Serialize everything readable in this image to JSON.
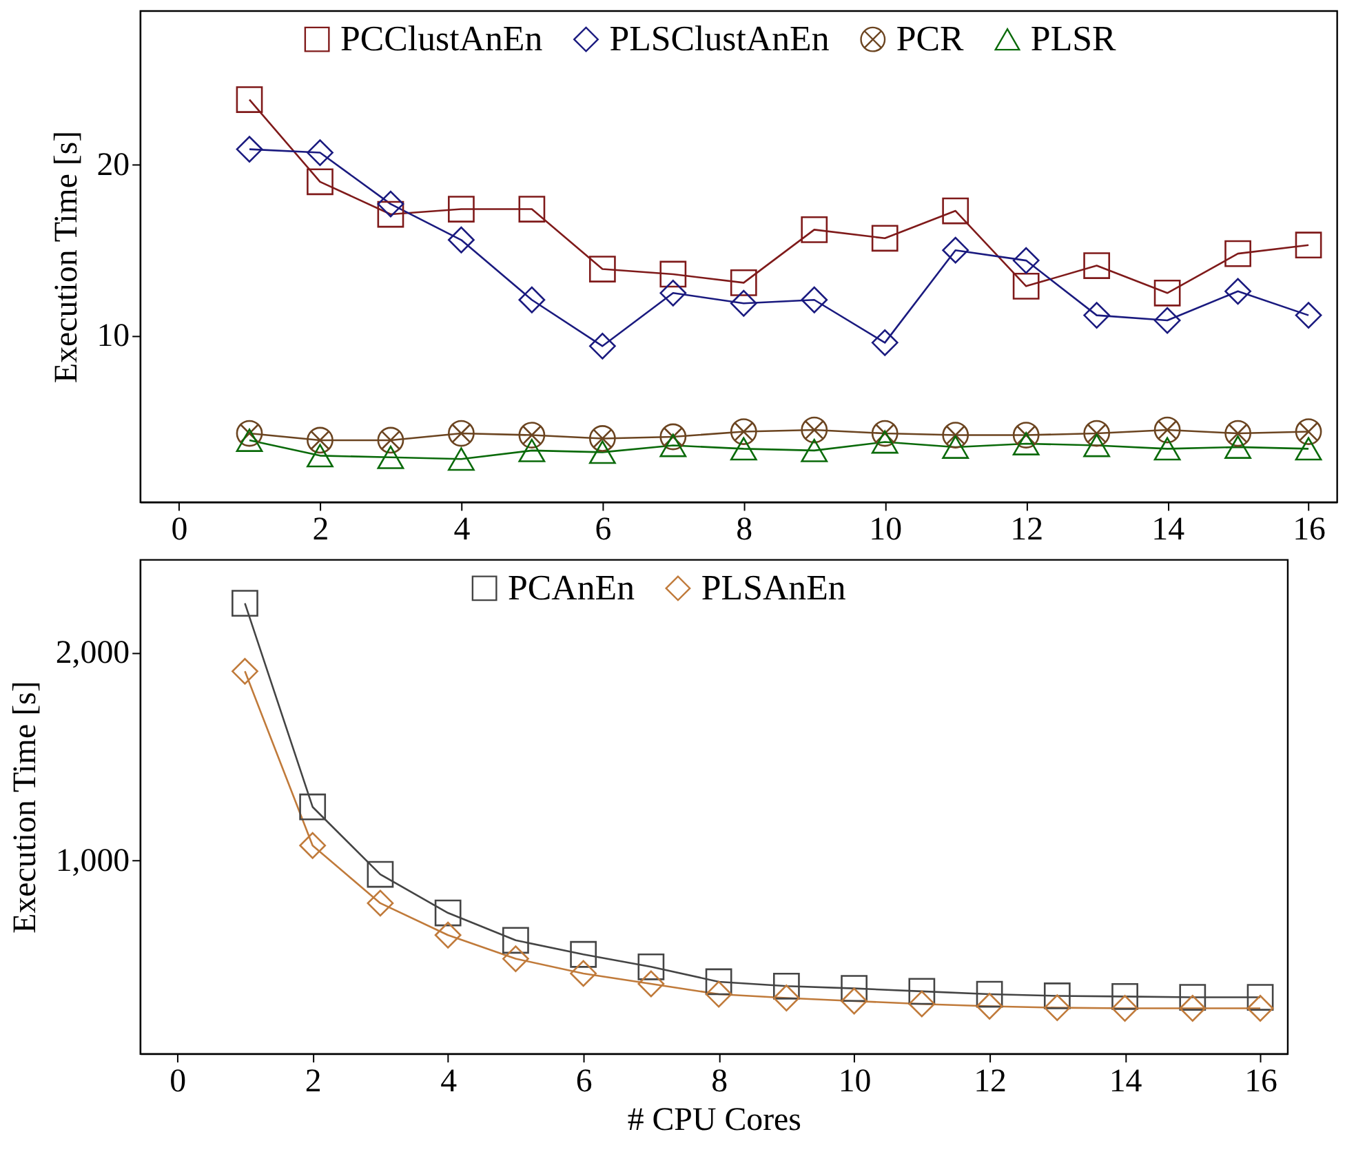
{
  "chart_data": [
    {
      "type": "line",
      "ylabel": "Execution Time [s]",
      "x": [
        1,
        2,
        3,
        4,
        5,
        6,
        7,
        8,
        9,
        10,
        11,
        12,
        13,
        14,
        15,
        16
      ],
      "xlim": [
        -0.55,
        16.4
      ],
      "xticks": [
        0,
        2,
        4,
        6,
        8,
        10,
        12,
        14,
        16
      ],
      "ylim": [
        0.3,
        29
      ],
      "yticks": [
        10,
        20
      ],
      "grid": false,
      "legend": "top",
      "line_style": "solid",
      "series": [
        {
          "name": "PCClustAnEn",
          "color": "#7f1a1a",
          "marker": "square",
          "values": [
            23.8,
            19.0,
            17.1,
            17.4,
            17.4,
            13.9,
            13.6,
            13.1,
            16.2,
            15.7,
            17.3,
            12.9,
            14.1,
            12.5,
            14.8,
            15.3
          ]
        },
        {
          "name": "PLSClustAnEn",
          "color": "#1a1a7f",
          "marker": "diamond",
          "values": [
            20.9,
            20.7,
            17.7,
            15.6,
            12.1,
            9.4,
            12.5,
            11.9,
            12.1,
            9.6,
            15.0,
            14.4,
            11.2,
            10.9,
            12.6,
            11.2
          ]
        },
        {
          "name": "PCR",
          "color": "#6b4420",
          "marker": "cross",
          "values": [
            4.3,
            3.9,
            3.9,
            4.3,
            4.2,
            4.0,
            4.1,
            4.4,
            4.5,
            4.3,
            4.2,
            4.2,
            4.3,
            4.5,
            4.3,
            4.4
          ]
        },
        {
          "name": "PLSR",
          "color": "#0a6a0a",
          "marker": "triangle",
          "values": [
            3.9,
            3.0,
            2.9,
            2.8,
            3.3,
            3.2,
            3.6,
            3.4,
            3.3,
            3.8,
            3.5,
            3.7,
            3.6,
            3.4,
            3.5,
            3.4
          ]
        }
      ]
    },
    {
      "type": "line",
      "xlabel": "# CPU Cores",
      "ylabel": "Execution Time [s]",
      "x": [
        1,
        2,
        3,
        4,
        5,
        6,
        7,
        8,
        9,
        10,
        11,
        12,
        13,
        14,
        15,
        16
      ],
      "xlim": [
        -0.55,
        16.4
      ],
      "xticks": [
        0,
        2,
        4,
        6,
        8,
        10,
        12,
        14,
        16
      ],
      "ylim": [
        68,
        2450
      ],
      "yticks": [
        {
          "value": 1000,
          "label": "1,000"
        },
        {
          "value": 2000,
          "label": "2,000"
        }
      ],
      "grid": false,
      "legend": "top",
      "line_style": "solid",
      "series": [
        {
          "name": "PCAnEn",
          "color": "#444444",
          "marker": "square",
          "values": [
            2239,
            1257,
            932,
            746,
            614,
            546,
            486,
            414,
            393,
            382,
            368,
            354,
            346,
            343,
            339,
            339
          ]
        },
        {
          "name": "PLSAnEn",
          "color": "#c07a3a",
          "marker": "diamond",
          "values": [
            1911,
            1071,
            793,
            639,
            525,
            454,
            404,
            354,
            336,
            321,
            307,
            296,
            289,
            286,
            286,
            286
          ]
        }
      ]
    }
  ]
}
